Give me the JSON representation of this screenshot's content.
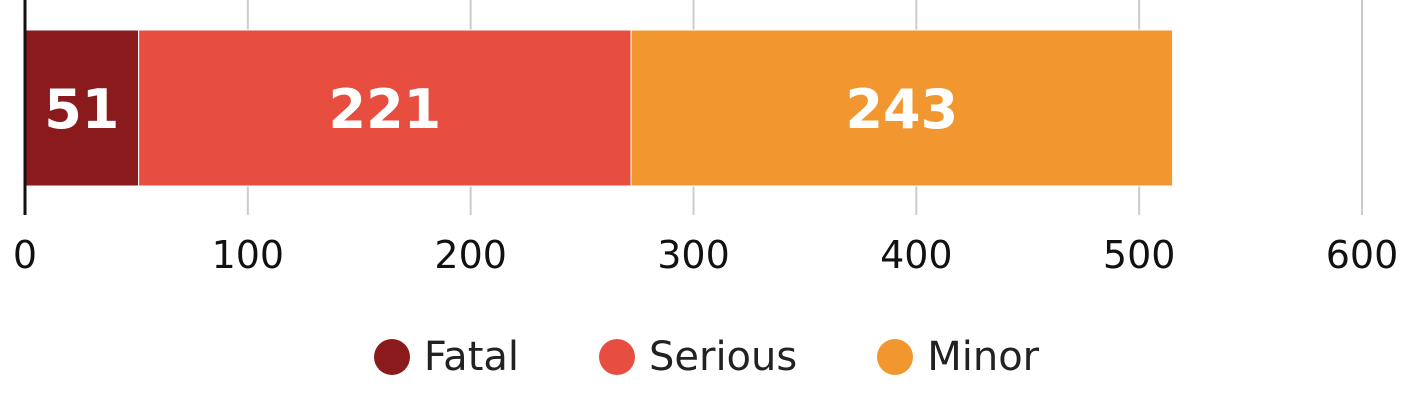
{
  "chart_data": {
    "type": "bar",
    "orientation": "horizontal",
    "stacked": true,
    "categories": [
      ""
    ],
    "series": [
      {
        "name": "Fatal",
        "values": [
          51
        ],
        "color": "#8b1a1d"
      },
      {
        "name": "Serious",
        "values": [
          221
        ],
        "color": "#e84e40"
      },
      {
        "name": "Minor",
        "values": [
          243
        ],
        "color": "#f29630"
      }
    ],
    "xlim": [
      0,
      600
    ],
    "xticks": [
      0,
      100,
      200,
      300,
      400,
      500,
      600
    ],
    "xtick_labels": [
      "0",
      "100",
      "200",
      "300",
      "400",
      "500",
      "600"
    ],
    "grid": true,
    "legend_position": "bottom-center",
    "data_labels": [
      "51",
      "221",
      "243"
    ]
  }
}
